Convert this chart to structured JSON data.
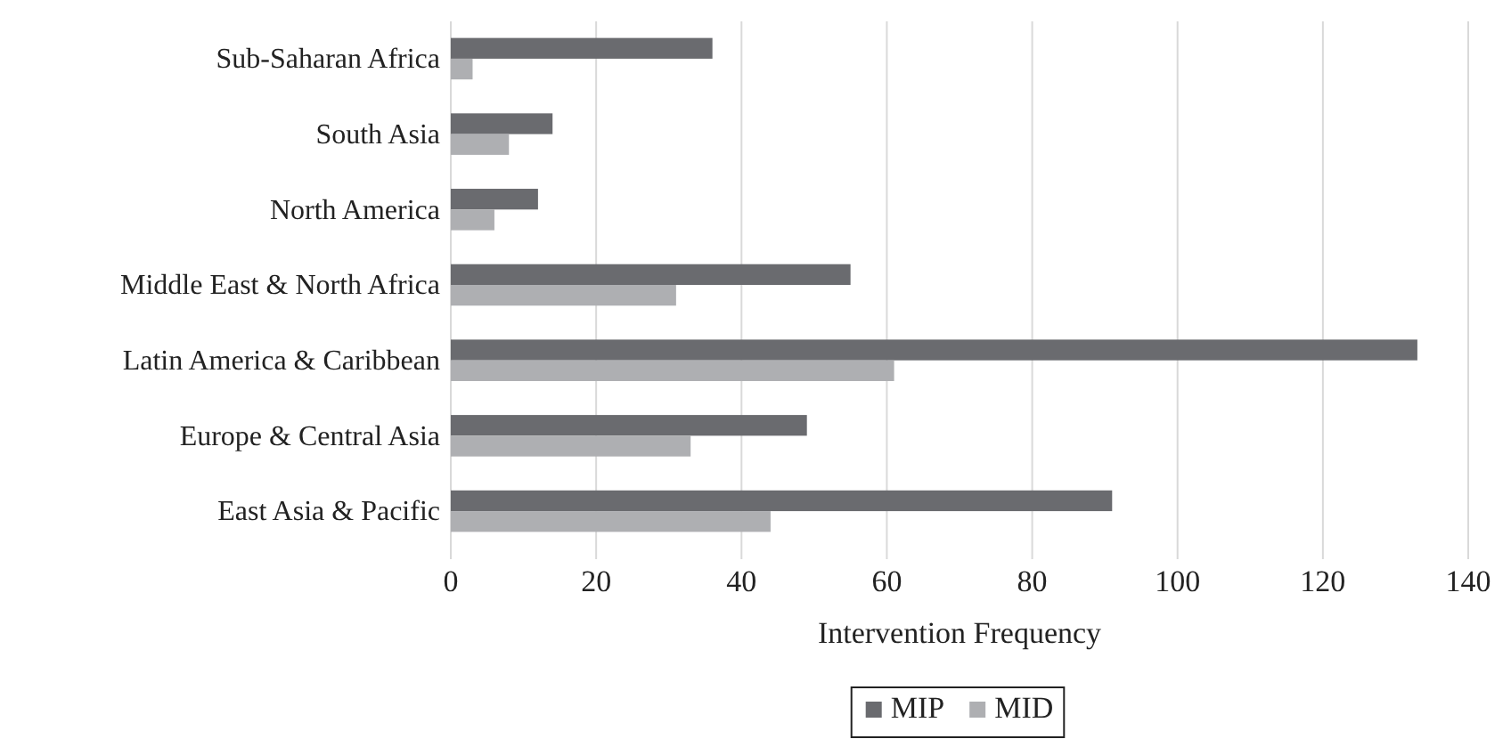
{
  "chart_data": {
    "type": "bar",
    "orientation": "horizontal",
    "xlabel": "Intervention Frequency",
    "categories": [
      "Sub-Saharan Africa",
      "South Asia",
      "North America",
      "Middle East & North Africa",
      "Latin America & Caribbean",
      "Europe & Central Asia",
      "East Asia & Pacific"
    ],
    "series": [
      {
        "name": "MIP",
        "color": "#6a6b6f",
        "values": [
          36,
          14,
          12,
          55,
          133,
          49,
          91
        ]
      },
      {
        "name": "MID",
        "color": "#aeafb2",
        "values": [
          3,
          8,
          6,
          31,
          61,
          33,
          44
        ]
      }
    ],
    "xlim": [
      0,
      140
    ],
    "xticks": [
      0,
      20,
      40,
      60,
      80,
      100,
      120,
      140
    ],
    "grid": "x",
    "legend": "bottom"
  }
}
